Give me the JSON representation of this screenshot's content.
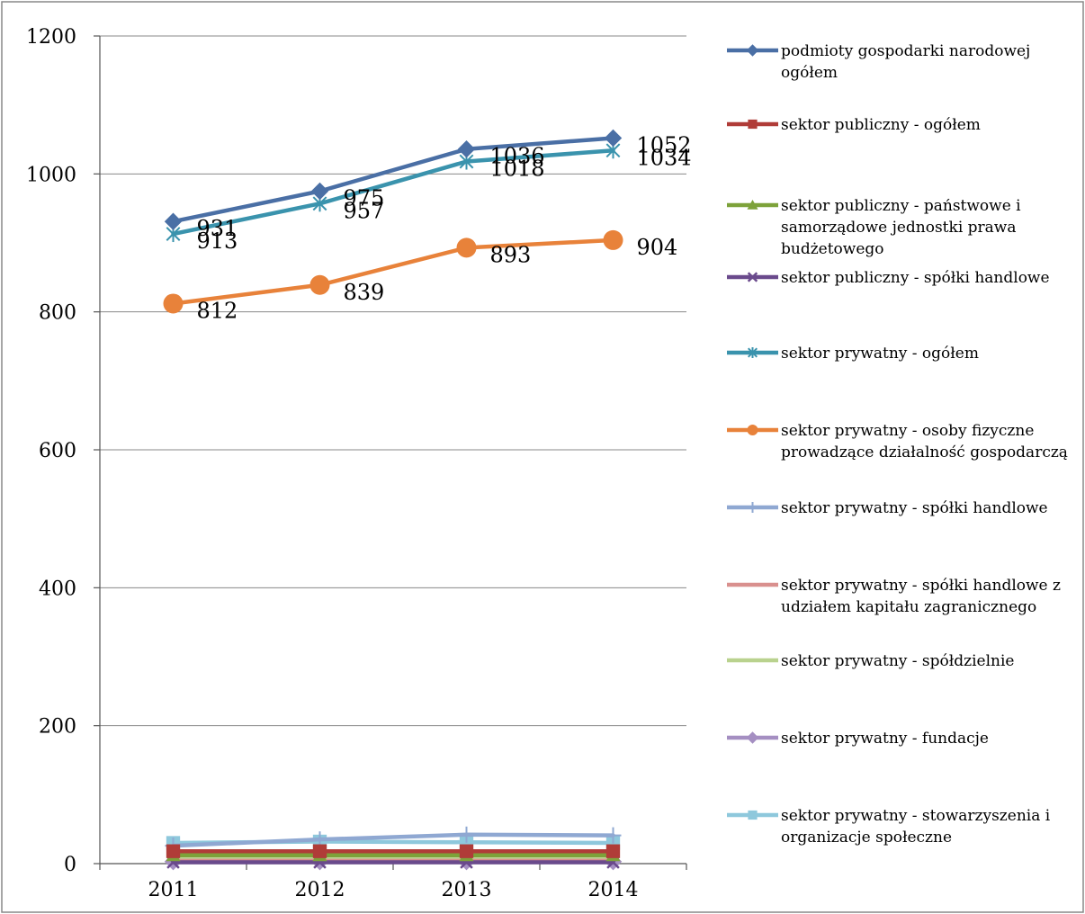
{
  "chart_data": {
    "type": "line",
    "categories": [
      "2011",
      "2012",
      "2013",
      "2014"
    ],
    "ylim": [
      0,
      1200
    ],
    "yticks": [
      0,
      200,
      400,
      600,
      800,
      1000,
      1200
    ],
    "grid": true,
    "legend_position": "right",
    "series": [
      {
        "name": "podmioty gospodarki narodowej ogółem",
        "legend_lines": [
          "podmioty gospodarki narodowej",
          "ogółem"
        ],
        "values": [
          931,
          975,
          1036,
          1052
        ],
        "labels": [
          "931",
          "975",
          "1036",
          "1052"
        ],
        "color": "#4a6fa5",
        "marker": "diamond"
      },
      {
        "name": "sektor publiczny - ogółem",
        "legend_lines": [
          "sektor publiczny - ogółem"
        ],
        "values": [
          18,
          18,
          18,
          18
        ],
        "color": "#b03c38",
        "marker": "square"
      },
      {
        "name": "sektor publiczny - państwowe i samorządowe jednostki prawa budżetowego",
        "legend_lines": [
          "sektor publiczny - państwowe i",
          "samorządowe jednostki prawa",
          "budżetowego"
        ],
        "values": [
          12,
          12,
          12,
          12
        ],
        "color": "#7da23a",
        "marker": "triangle"
      },
      {
        "name": "sektor publiczny - spółki handlowe",
        "legend_lines": [
          "sektor publiczny - spółki handlowe"
        ],
        "values": [
          2,
          2,
          2,
          2
        ],
        "color": "#6a4a8c",
        "marker": "x"
      },
      {
        "name": "sektor prywatny - ogółem",
        "legend_lines": [
          "sektor prywatny - ogółem"
        ],
        "values": [
          913,
          957,
          1018,
          1034
        ],
        "labels": [
          "913",
          "957",
          "1018",
          "1034"
        ],
        "color": "#3a93ad",
        "marker": "star"
      },
      {
        "name": "sektor prywatny - osoby fizyczne prowadzące działalność gospodarczą",
        "legend_lines": [
          "sektor prywatny - osoby fizyczne",
          "prowadzące działalność gospodarczą"
        ],
        "values": [
          812,
          839,
          893,
          904
        ],
        "labels": [
          "812",
          "839",
          "893",
          "904"
        ],
        "color": "#e8823a",
        "marker": "circle"
      },
      {
        "name": "sektor prywatny - spółki handlowe",
        "legend_lines": [
          "sektor prywatny - spółki handlowe"
        ],
        "values": [
          26,
          35,
          42,
          41
        ],
        "color": "#8fa8d2",
        "marker": "plus"
      },
      {
        "name": "sektor prywatny - spółki handlowe z udziałem kapitału zagranicznego",
        "legend_lines": [
          "sektor prywatny - spółki handlowe z",
          "udziałem kapitału zagranicznego"
        ],
        "values": [
          4,
          4,
          4,
          4
        ],
        "color": "#d9908e",
        "marker": "none"
      },
      {
        "name": "sektor prywatny - spółdzielnie",
        "legend_lines": [
          "sektor prywatny - spółdzielnie"
        ],
        "values": [
          6,
          6,
          6,
          6
        ],
        "color": "#b9d28e",
        "marker": "none"
      },
      {
        "name": "sektor prywatny - fundacje",
        "legend_lines": [
          "sektor prywatny - fundacje"
        ],
        "values": [
          3,
          3,
          3,
          3
        ],
        "color": "#a58fc2",
        "marker": "diamond"
      },
      {
        "name": "sektor prywatny - stowarzyszenia i organizacje społeczne",
        "legend_lines": [
          "sektor prywatny - stowarzyszenia i",
          "organizacje społeczne"
        ],
        "values": [
          30,
          32,
          31,
          30
        ],
        "color": "#8ec8dc",
        "marker": "square"
      }
    ]
  }
}
